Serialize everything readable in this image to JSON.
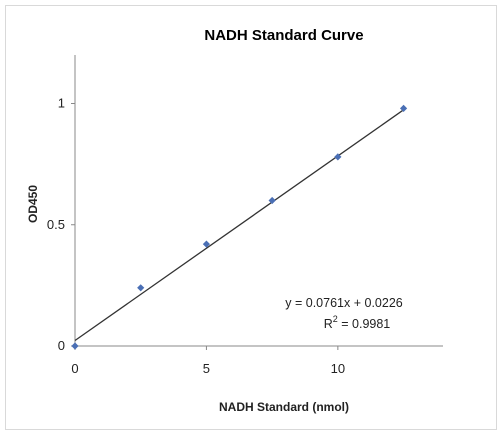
{
  "chart_data": {
    "type": "scatter",
    "title": "NADH Standard  Curve",
    "xlabel": "NADH Standard (nmol)",
    "ylabel": "OD450",
    "xlim": [
      0,
      14
    ],
    "ylim": [
      0,
      1.2
    ],
    "x_ticks": [
      "0",
      "5",
      "10"
    ],
    "x_tick_values": [
      0,
      5,
      10
    ],
    "y_ticks": [
      "0",
      "0.5",
      "1"
    ],
    "y_tick_values": [
      0,
      0.5,
      1
    ],
    "grid": false,
    "legend": "none",
    "series": [
      {
        "x": [
          0,
          2.5,
          5,
          7.5,
          10,
          12.5
        ],
        "y": [
          0.0,
          0.24,
          0.42,
          0.6,
          0.78,
          0.98
        ],
        "color": "#4a6fb5"
      }
    ],
    "trendline": {
      "slope": 0.0761,
      "intercept": 0.0226,
      "x_range": [
        0,
        12.5
      ],
      "color": "#333333"
    },
    "annotations": {
      "equation": "y = 0.0761x + 0.0226",
      "r2_prefix": "R",
      "r2_exp": "2",
      "r2_value": " = 0.9981"
    }
  }
}
